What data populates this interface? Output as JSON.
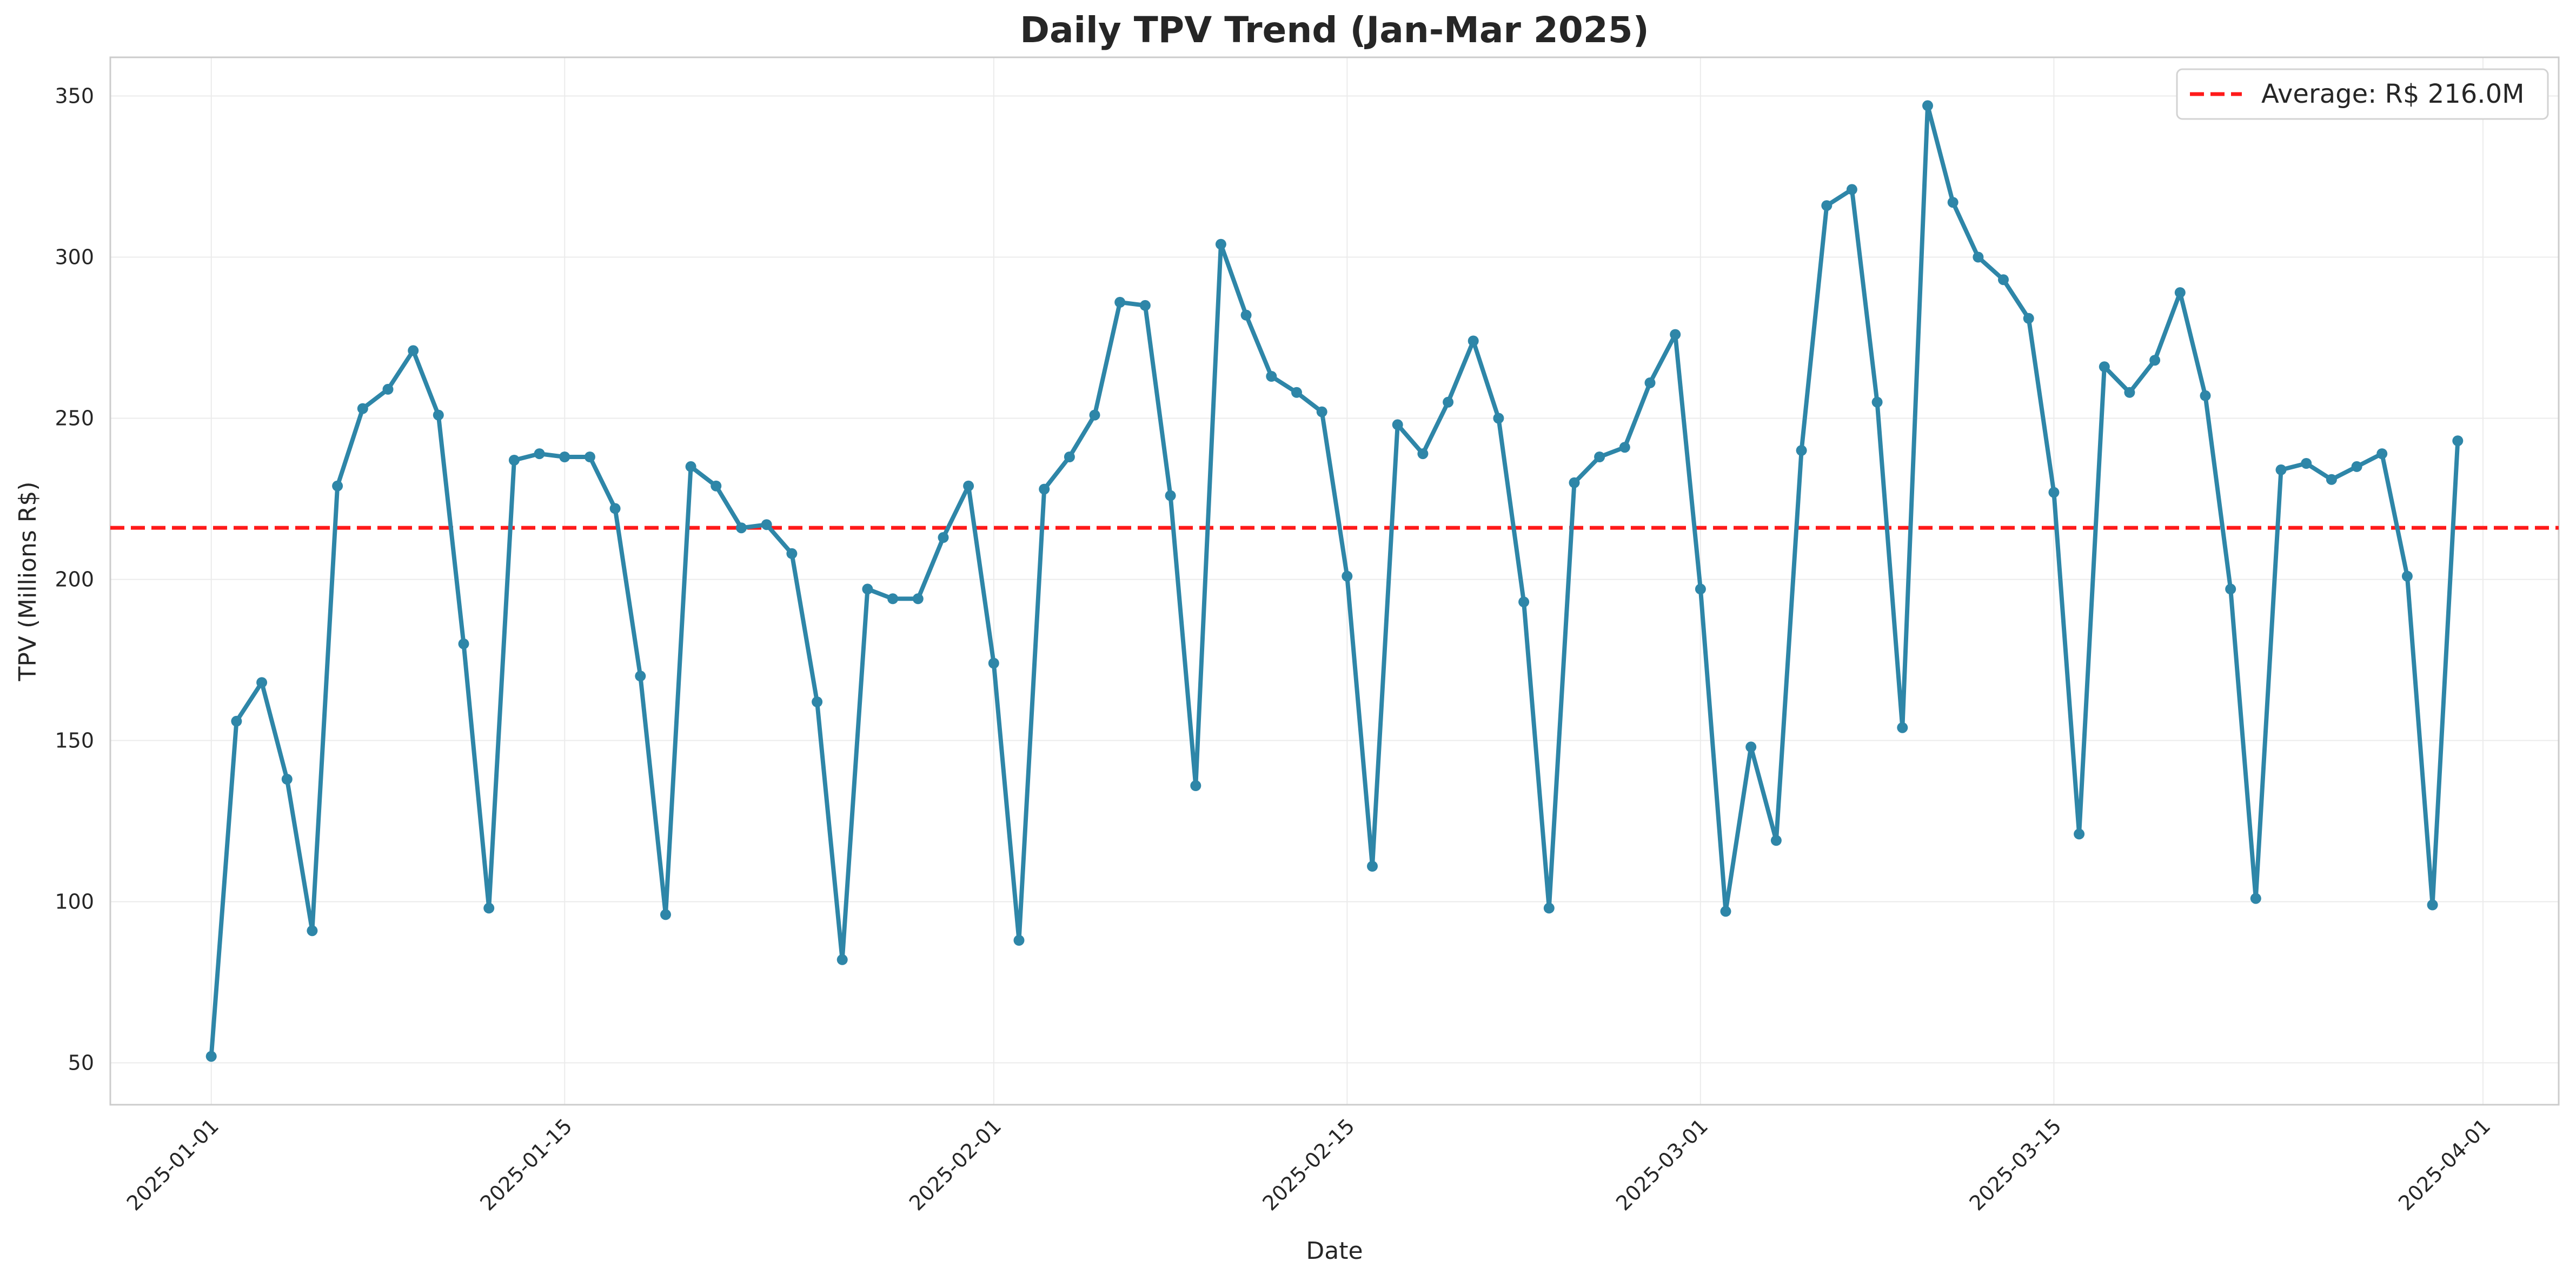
{
  "chart_data": {
    "type": "line",
    "title": "Daily TPV Trend (Jan-Mar 2025)",
    "xlabel": "Date",
    "ylabel": "TPV (Millions R$)",
    "xlim": [
      "2024-12-28",
      "2025-04-04"
    ],
    "ylim": [
      37,
      362
    ],
    "x_ticks": [
      "2025-01-01",
      "2025-01-15",
      "2025-02-01",
      "2025-02-15",
      "2025-03-01",
      "2025-03-15",
      "2025-04-01"
    ],
    "y_ticks": [
      50,
      100,
      150,
      200,
      250,
      300,
      350
    ],
    "grid": true,
    "legend_position": "top-right",
    "line_color": "#2e86a8",
    "average_color": "#ff1a1a",
    "series": [
      {
        "start_date": "2025-01-01",
        "frequency": "daily",
        "values": [
          52,
          156,
          168,
          138,
          91,
          229,
          253,
          259,
          271,
          251,
          180,
          98,
          237,
          239,
          238,
          238,
          222,
          170,
          96,
          235,
          229,
          216,
          217,
          208,
          162,
          82,
          197,
          194,
          194,
          213,
          229,
          174,
          88,
          228,
          238,
          251,
          286,
          285,
          226,
          136,
          304,
          282,
          263,
          258,
          252,
          201,
          111,
          248,
          239,
          255,
          274,
          250,
          193,
          98,
          230,
          238,
          241,
          261,
          276,
          197,
          97,
          148,
          119,
          240,
          316,
          321,
          255,
          154,
          347,
          317,
          300,
          293,
          281,
          227,
          121,
          266,
          258,
          268,
          289,
          257,
          197,
          101,
          234,
          236,
          231,
          235,
          239,
          201,
          99,
          243
        ]
      }
    ],
    "average": {
      "value": 216.0,
      "label": "Average: R$ 216.0M"
    }
  }
}
